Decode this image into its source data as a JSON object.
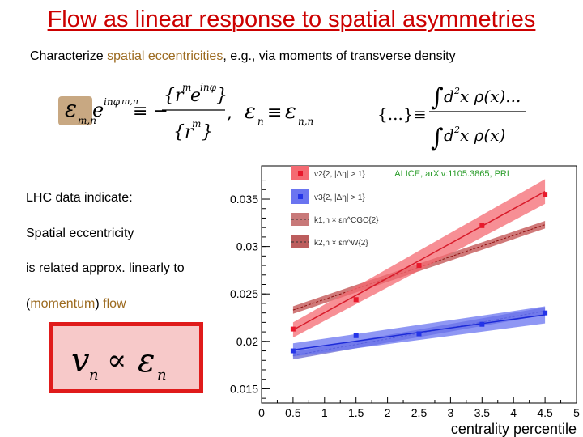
{
  "title": "Flow as linear response to spatial asymmetries",
  "subtitle": {
    "prefix": "Characterize ",
    "highlight": "spatial eccentricities",
    "suffix": ", e.g., via moments of transverse density"
  },
  "left_text": {
    "line1": "LHC data indicate:",
    "line2": "Spatial eccentricity",
    "line3": "is related approx. linearly to",
    "line4_open": "(",
    "line4_momentum": "momentum",
    "line4_close": ")",
    "line4_flow": "flow"
  },
  "formulas": {
    "eps_mn": "εm,n",
    "eps_n": "εn ≡ εn,n",
    "moment": "{...} ≡ ∫d²x ρ(x)... / ∫d²x ρ(x)",
    "vn_prop": "vn ∝ εn"
  },
  "chart_data": {
    "type": "scatter",
    "title": "",
    "xlabel": "centrality percentile",
    "ylabel": "",
    "xlim": [
      0,
      5
    ],
    "ylim": [
      0.0135,
      0.0385
    ],
    "xticks": [
      "0",
      "0.5",
      "1",
      "1.5",
      "2",
      "2.5",
      "3",
      "3.5",
      "4",
      "4.5",
      "5"
    ],
    "yticks": [
      "0.015",
      "0.02",
      "0.025",
      "0.03",
      "0.035"
    ],
    "annotation": "ALICE, arXiv:1105.3865, PRL",
    "legend_position": "top-left",
    "colors": {
      "v2": "#e8192c",
      "v3": "#2434e8",
      "v2_band": "#f46a72",
      "v3_band": "#6a74f0"
    },
    "series": [
      {
        "name": "v2{2, |Δη| > 1}",
        "x": [
          0.5,
          1.5,
          2.5,
          3.5,
          4.5
        ],
        "y": [
          0.0213,
          0.0244,
          0.028,
          0.0322,
          0.0355
        ],
        "band_x": [
          0.5,
          4.5
        ],
        "band_y": [
          0.0212,
          0.0358
        ],
        "band_halfwidth": [
          0.0008,
          0.0013
        ]
      },
      {
        "name": "v3{2, |Δη| > 1}",
        "x": [
          0.5,
          1.5,
          2.5,
          3.5,
          4.5
        ],
        "y": [
          0.019,
          0.0206,
          0.0208,
          0.0218,
          0.023
        ],
        "band_x": [
          0.5,
          4.5
        ],
        "band_y": [
          0.0191,
          0.0228
        ],
        "band_halfwidth": [
          0.0007,
          0.0009
        ]
      },
      {
        "name": "k1,n × εn^CGC{2}",
        "band_x": [
          0.5,
          4.5
        ],
        "band_y": [
          0.0185,
          0.0232
        ],
        "band_halfwidth": [
          0.0004,
          0.0004
        ]
      },
      {
        "name": "k2,n × εn^W{2}",
        "band_x": [
          0.5,
          4.5
        ],
        "band_y": [
          0.0233,
          0.0323
        ],
        "band_halfwidth": [
          0.0004,
          0.0004
        ]
      }
    ]
  }
}
